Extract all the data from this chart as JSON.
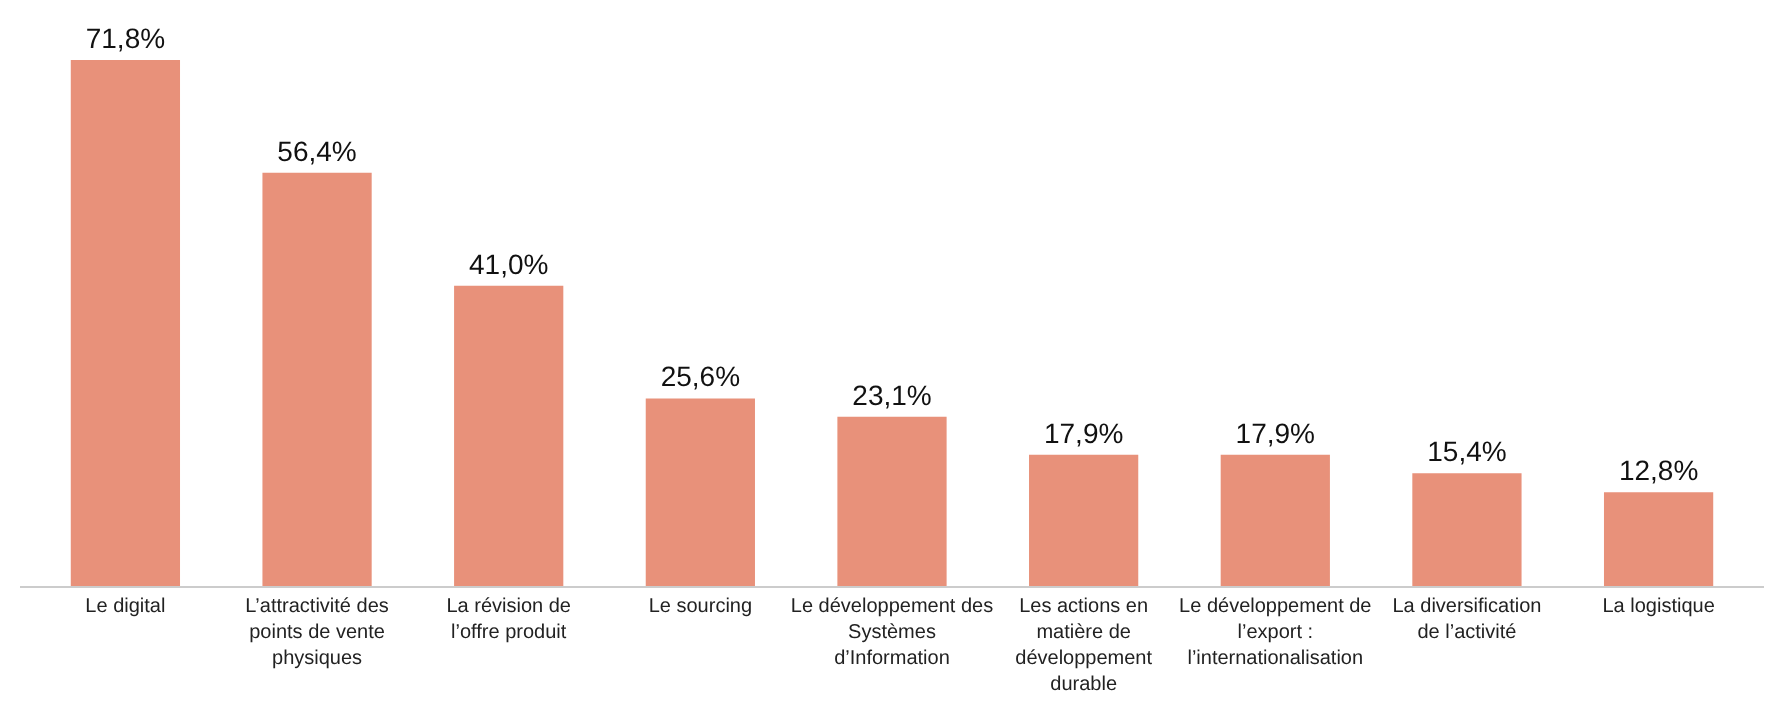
{
  "chart_data": {
    "type": "bar",
    "categories": [
      "Le digital",
      "L’attractivité des points de vente physiques",
      "La révision de l’offre produit",
      "Le sourcing",
      "Le développement des Systèmes d’Information",
      "Les actions en matière de développement durable",
      "Le développement de l’export : l’internationalisation",
      "La diversification de l’activité",
      "La logistique"
    ],
    "values": [
      71.8,
      56.4,
      41.0,
      25.6,
      23.1,
      17.9,
      17.9,
      15.4,
      12.8
    ],
    "value_labels": [
      "71,8%",
      "56,4%",
      "41,0%",
      "25,6%",
      "23,1%",
      "17,9%",
      "17,9%",
      "15,4%",
      "12,8%"
    ],
    "color": "#e8917a",
    "legend": false
  }
}
